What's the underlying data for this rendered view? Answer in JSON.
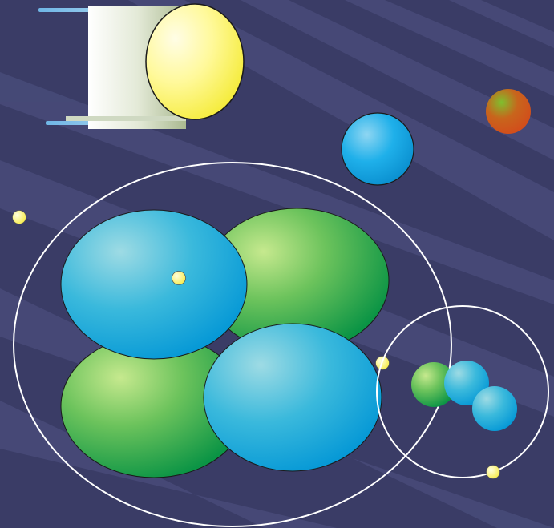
{
  "scene": {
    "subject": "atom",
    "colors": {
      "background": "#3a3c66",
      "ray": "#55598a",
      "orbit": "#ffffff",
      "electron": "#fff27a",
      "proton_light": "#a6e07a",
      "proton_dark": "#18a047",
      "neutron_light": "#7fd3ea",
      "neutron_dark": "#0aa6dc",
      "bulb": "#fff27a",
      "cylinder": "#e6ebde",
      "orange_planet": "#d85a1c",
      "blue_planet": "#19a9e6"
    },
    "icons": [
      "flashlight-icon",
      "planet-icon",
      "atom-icon",
      "electron-icon"
    ]
  }
}
